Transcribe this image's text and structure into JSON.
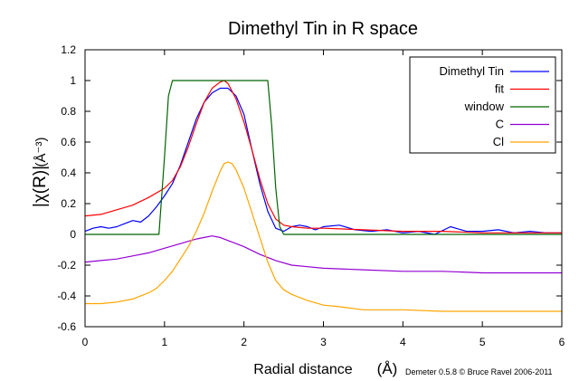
{
  "chart_data": {
    "type": "line",
    "title": "Dimethyl Tin in R space",
    "xlabel": "Radial distance",
    "xlabel_unit": "(Å)",
    "ylabel": "|χ(R)|",
    "ylabel_unit": "(Å⁻³)",
    "xlim": [
      0,
      6
    ],
    "ylim": [
      -0.6,
      1.2
    ],
    "xticks": [
      "0",
      "1",
      "2",
      "3",
      "4",
      "5",
      "6"
    ],
    "yticks": [
      "-0.6",
      "-0.4",
      "-0.2",
      "0",
      "0.2",
      "0.4",
      "0.6",
      "0.8",
      "1",
      "1.2"
    ],
    "grid": false,
    "legend_position": "top-right",
    "credit": "Demeter 0.5.8 © Bruce Ravel 2006-2011",
    "series": [
      {
        "name": "Dimethyl Tin",
        "color": "#0000ff",
        "x": [
          0,
          0.1,
          0.2,
          0.3,
          0.4,
          0.5,
          0.6,
          0.7,
          0.8,
          0.9,
          1.0,
          1.1,
          1.2,
          1.3,
          1.4,
          1.5,
          1.6,
          1.7,
          1.8,
          1.9,
          2.0,
          2.1,
          2.2,
          2.3,
          2.4,
          2.5,
          2.6,
          2.7,
          2.8,
          2.9,
          3.0,
          3.2,
          3.4,
          3.6,
          3.8,
          4.0,
          4.2,
          4.4,
          4.6,
          4.8,
          5.0,
          5.2,
          5.4,
          5.6,
          5.8,
          6.0
        ],
        "y": [
          0.02,
          0.04,
          0.05,
          0.04,
          0.05,
          0.07,
          0.09,
          0.08,
          0.12,
          0.18,
          0.25,
          0.33,
          0.45,
          0.6,
          0.75,
          0.86,
          0.92,
          0.95,
          0.95,
          0.9,
          0.78,
          0.55,
          0.33,
          0.15,
          0.04,
          0.02,
          0.05,
          0.06,
          0.05,
          0.03,
          0.05,
          0.06,
          0.03,
          0.02,
          0.03,
          0.01,
          0.02,
          0.0,
          0.05,
          0.02,
          0.02,
          0.03,
          0.01,
          0.02,
          0.01,
          0.01
        ]
      },
      {
        "name": "fit",
        "color": "#ff0000",
        "x": [
          0,
          0.2,
          0.4,
          0.6,
          0.8,
          1.0,
          1.1,
          1.2,
          1.3,
          1.4,
          1.5,
          1.6,
          1.7,
          1.75,
          1.8,
          1.9,
          2.0,
          2.1,
          2.2,
          2.3,
          2.4,
          2.5,
          2.6,
          2.8,
          3.0,
          3.5,
          4.0,
          4.5,
          5.0,
          5.5,
          6.0
        ],
        "y": [
          0.12,
          0.13,
          0.16,
          0.19,
          0.24,
          0.3,
          0.35,
          0.44,
          0.57,
          0.72,
          0.86,
          0.95,
          0.99,
          1.0,
          0.98,
          0.88,
          0.73,
          0.55,
          0.36,
          0.2,
          0.1,
          0.06,
          0.05,
          0.04,
          0.04,
          0.03,
          0.02,
          0.02,
          0.01,
          0.01,
          0.01
        ]
      },
      {
        "name": "window",
        "color": "#006400",
        "x": [
          0,
          0.93,
          1.0,
          1.05,
          1.1,
          2.3,
          2.35,
          2.4,
          2.45,
          2.5,
          6.0
        ],
        "y": [
          0,
          0,
          0.5,
          0.9,
          1.0,
          1.0,
          0.7,
          0.3,
          0.05,
          0,
          0
        ]
      },
      {
        "name": "C",
        "color": "#9400d3",
        "x": [
          0,
          0.2,
          0.4,
          0.6,
          0.8,
          1.0,
          1.2,
          1.4,
          1.5,
          1.6,
          1.7,
          1.8,
          2.0,
          2.2,
          2.4,
          2.6,
          2.8,
          3.0,
          3.5,
          4.0,
          4.5,
          5.0,
          5.5,
          6.0
        ],
        "y": [
          -0.18,
          -0.17,
          -0.16,
          -0.14,
          -0.12,
          -0.09,
          -0.06,
          -0.03,
          -0.02,
          -0.01,
          -0.02,
          -0.04,
          -0.08,
          -0.13,
          -0.17,
          -0.2,
          -0.21,
          -0.22,
          -0.23,
          -0.24,
          -0.24,
          -0.25,
          -0.25,
          -0.25
        ]
      },
      {
        "name": "Cl",
        "color": "#ffa500",
        "x": [
          0,
          0.2,
          0.4,
          0.6,
          0.8,
          0.9,
          1.0,
          1.1,
          1.2,
          1.3,
          1.4,
          1.5,
          1.6,
          1.7,
          1.75,
          1.8,
          1.85,
          1.9,
          2.0,
          2.1,
          2.2,
          2.3,
          2.4,
          2.5,
          2.6,
          2.8,
          3.0,
          3.2,
          3.5,
          4.0,
          4.5,
          5.0,
          5.5,
          6.0
        ],
        "y": [
          -0.45,
          -0.45,
          -0.44,
          -0.42,
          -0.38,
          -0.35,
          -0.3,
          -0.24,
          -0.16,
          -0.08,
          0.02,
          0.14,
          0.28,
          0.41,
          0.46,
          0.47,
          0.46,
          0.42,
          0.3,
          0.14,
          -0.02,
          -0.18,
          -0.3,
          -0.36,
          -0.39,
          -0.43,
          -0.46,
          -0.47,
          -0.49,
          -0.49,
          -0.5,
          -0.5,
          -0.5,
          -0.5
        ]
      }
    ]
  }
}
